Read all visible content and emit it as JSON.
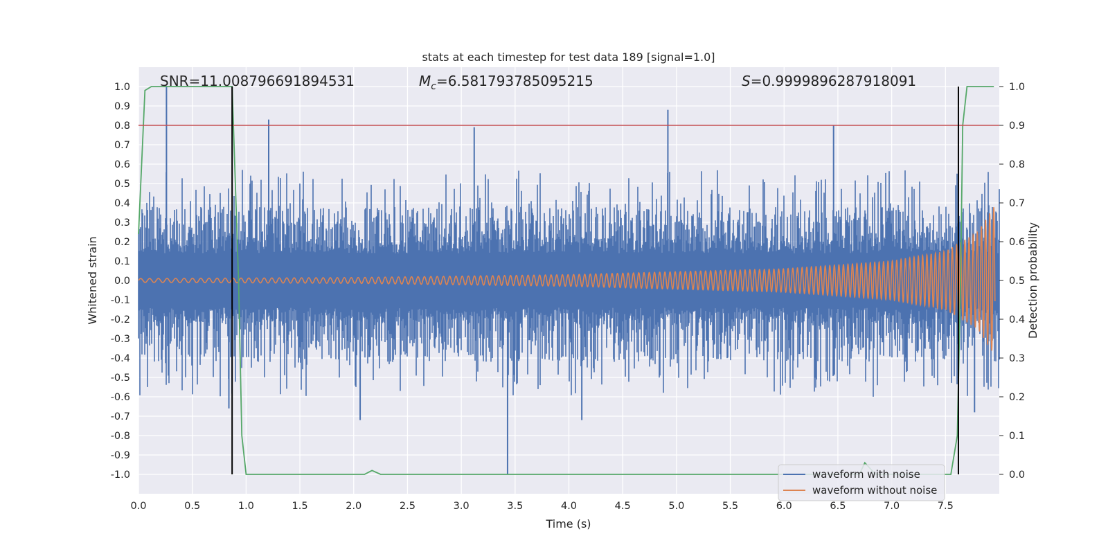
{
  "colors": {
    "background": "#ffffff",
    "plot_background": "#eaeaf2",
    "grid": "#ffffff",
    "noisy": "#4c72b0",
    "clean": "#dd8452",
    "probability": "#55a868",
    "threshold": "#c44e52",
    "markers": "#000000",
    "text": "#262626"
  },
  "chart_data": {
    "type": "line",
    "title": "stats at each timestep for test data 189 [signal=1.0]",
    "xlabel": "Time (s)",
    "ylabel": "Whitened strain",
    "y2label": "Detection probability",
    "xlim": [
      0.0,
      8.0
    ],
    "ylim": [
      -1.1,
      1.1
    ],
    "y2lim": [
      -0.05,
      1.05
    ],
    "x_ticks": [
      "0.0",
      "0.5",
      "1.0",
      "1.5",
      "2.0",
      "2.5",
      "3.0",
      "3.5",
      "4.0",
      "4.5",
      "5.0",
      "5.5",
      "6.0",
      "6.5",
      "7.0",
      "7.5"
    ],
    "y_ticks": [
      "1.0",
      "0.9",
      "0.8",
      "0.7",
      "0.6",
      "0.5",
      "0.4",
      "0.3",
      "0.2",
      "0.1",
      "0.0",
      "-0.1",
      "-0.2",
      "-0.3",
      "-0.4",
      "-0.5",
      "-0.6",
      "-0.7",
      "-0.8",
      "-0.9",
      "-1.0"
    ],
    "y2_ticks": [
      "1.0",
      "0.9",
      "0.8",
      "0.7",
      "0.6",
      "0.5",
      "0.4",
      "0.3",
      "0.2",
      "0.1",
      "0.0"
    ],
    "grid": true,
    "legend_position": "bottom-right",
    "annotations": {
      "snr": "SNR=11.008796691894531",
      "mc_symbol": "M",
      "mc_subscript": "c",
      "mc_value": "=6.581793785095215",
      "s_symbol": "S",
      "s_value": "=0.9999896287918091"
    },
    "series": [
      {
        "name": "waveform with noise",
        "style": "dense noisy trace, envelope approx ±0.35 with sparse spikes",
        "spikes": [
          {
            "x": 0.26,
            "y": 1.0
          },
          {
            "x": 1.21,
            "y": 0.83
          },
          {
            "x": 3.12,
            "y": 0.79
          },
          {
            "x": 4.92,
            "y": 0.88
          },
          {
            "x": 6.46,
            "y": 0.8
          },
          {
            "x": 3.43,
            "y": -1.0
          },
          {
            "x": 0.84,
            "y": -0.66
          },
          {
            "x": 2.06,
            "y": -0.72
          },
          {
            "x": 4.12,
            "y": -0.72
          },
          {
            "x": 7.77,
            "y": -0.68
          }
        ]
      },
      {
        "name": "waveform without noise",
        "style": "chirp oscillation growing in amplitude toward the end",
        "amplitude": [
          {
            "x": 0.0,
            "y": 0.01
          },
          {
            "x": 2.0,
            "y": 0.015
          },
          {
            "x": 4.0,
            "y": 0.03
          },
          {
            "x": 6.0,
            "y": 0.06
          },
          {
            "x": 7.0,
            "y": 0.1
          },
          {
            "x": 7.5,
            "y": 0.15
          },
          {
            "x": 7.8,
            "y": 0.25
          },
          {
            "x": 7.95,
            "y": 0.38
          }
        ]
      },
      {
        "name": "detection probability",
        "axis": "right",
        "points": [
          {
            "x": 0.0,
            "y": 0.62
          },
          {
            "x": 0.06,
            "y": 0.99
          },
          {
            "x": 0.12,
            "y": 1.0
          },
          {
            "x": 0.87,
            "y": 1.0
          },
          {
            "x": 0.93,
            "y": 0.5
          },
          {
            "x": 0.96,
            "y": 0.1
          },
          {
            "x": 1.0,
            "y": 0.0
          },
          {
            "x": 2.1,
            "y": 0.0
          },
          {
            "x": 2.17,
            "y": 0.01
          },
          {
            "x": 2.25,
            "y": 0.0
          },
          {
            "x": 6.7,
            "y": 0.0
          },
          {
            "x": 6.75,
            "y": 0.03
          },
          {
            "x": 6.85,
            "y": 0.0
          },
          {
            "x": 7.55,
            "y": 0.0
          },
          {
            "x": 7.61,
            "y": 0.1
          },
          {
            "x": 7.64,
            "y": 0.5
          },
          {
            "x": 7.66,
            "y": 0.9
          },
          {
            "x": 7.7,
            "y": 1.0
          },
          {
            "x": 7.95,
            "y": 1.0
          }
        ]
      }
    ],
    "threshold_line": {
      "axis": "right",
      "y": 0.9
    },
    "marker_lines": [
      {
        "x": 0.87,
        "y_from": -1.0,
        "y_to": 1.0
      },
      {
        "x": 7.62,
        "y_from": -1.0,
        "y_to": 1.0
      }
    ]
  }
}
